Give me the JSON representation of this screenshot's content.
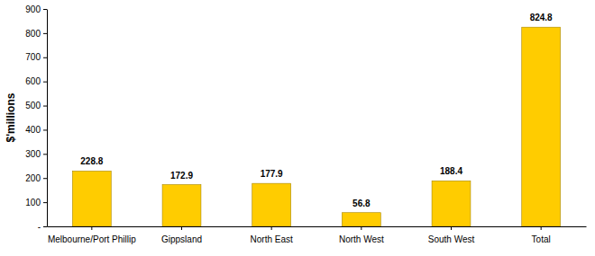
{
  "chart_data": {
    "type": "bar",
    "y_label": "$'millions",
    "categories": [
      "Melbourne/Port Phillip",
      "Gippsland",
      "North East",
      "North West",
      "South West",
      "Total"
    ],
    "values": [
      228.8,
      172.9,
      177.9,
      56.8,
      188.4,
      824.8
    ],
    "color": "#ffcc00",
    "ylim": [
      0,
      900
    ],
    "yticks": [
      {
        "value": 0,
        "label": "-"
      },
      100,
      200,
      300,
      400,
      500,
      600,
      700,
      800,
      900
    ],
    "grid": false,
    "data_labels": true
  }
}
